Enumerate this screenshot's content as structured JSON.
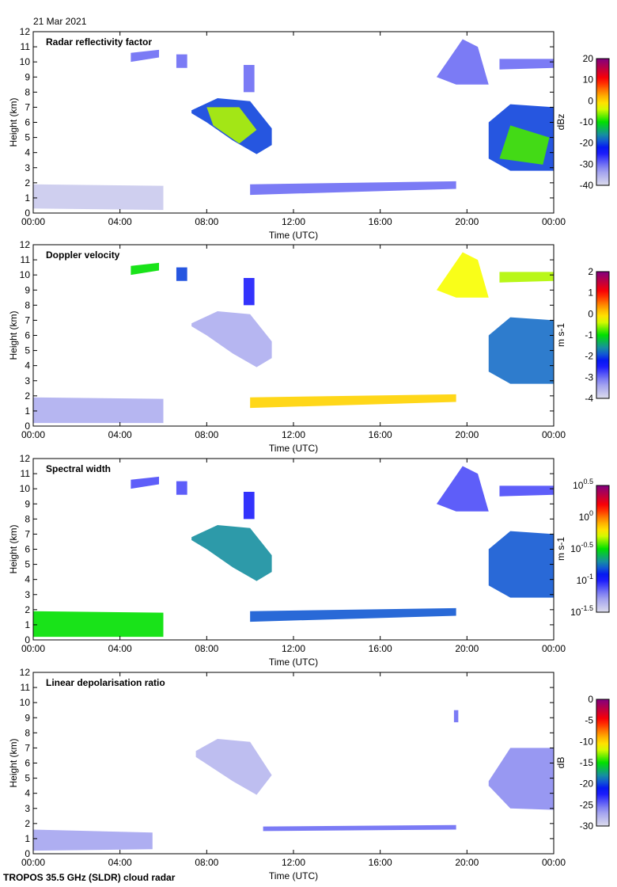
{
  "date": "21 Mar 2021",
  "footer": "TROPOS 35.5 GHz (SLDR) cloud radar",
  "chart_data": [
    {
      "type": "heatmap",
      "title": "Radar reflectivity factor",
      "xlabel": "Time (UTC)",
      "ylabel": "Height (km)",
      "xlim": [
        0,
        24
      ],
      "ylim": [
        0,
        12
      ],
      "xticks": [
        "00:00",
        "04:00",
        "08:00",
        "12:00",
        "16:00",
        "20:00",
        "00:00"
      ],
      "yticks": [
        "0",
        "1",
        "2",
        "3",
        "4",
        "5",
        "6",
        "7",
        "8",
        "9",
        "10",
        "11",
        "12"
      ],
      "colorbar": {
        "label": "dBz",
        "range": [
          -40,
          20
        ],
        "ticks": [
          "20",
          "10",
          "0",
          "-10",
          "-20",
          "-30",
          "-40"
        ]
      },
      "regions": [
        {
          "pts": [
            [
              0,
              0.3
            ],
            [
              6,
              0.2
            ],
            [
              6,
              1.8
            ],
            [
              0,
              1.9
            ]
          ],
          "value": -38
        },
        {
          "pts": [
            [
              4.5,
              10
            ],
            [
              5.8,
              10.3
            ],
            [
              5.8,
              10.8
            ],
            [
              4.5,
              10.6
            ]
          ],
          "value": -30
        },
        {
          "pts": [
            [
              6.6,
              9.6
            ],
            [
              7.1,
              9.6
            ],
            [
              7.1,
              10.5
            ],
            [
              6.6,
              10.5
            ]
          ],
          "value": -30
        },
        {
          "pts": [
            [
              9.7,
              8
            ],
            [
              10.2,
              8
            ],
            [
              10.2,
              9.8
            ],
            [
              9.7,
              9.8
            ]
          ],
          "value": -30
        },
        {
          "pts": [
            [
              7.3,
              6.8
            ],
            [
              8.5,
              7.6
            ],
            [
              10,
              7.4
            ],
            [
              11,
              5.6
            ],
            [
              11,
              4.5
            ],
            [
              10.3,
              3.9
            ],
            [
              9.2,
              4.8
            ],
            [
              8,
              6
            ],
            [
              7.3,
              6.6
            ]
          ],
          "value": -20
        },
        {
          "pts": [
            [
              8,
              7
            ],
            [
              9.5,
              7
            ],
            [
              10.3,
              5.5
            ],
            [
              9.5,
              4.6
            ],
            [
              8.3,
              5.8
            ]
          ],
          "value": -5
        },
        {
          "pts": [
            [
              10,
              1.2
            ],
            [
              19.5,
              1.6
            ],
            [
              19.5,
              2.1
            ],
            [
              10,
              1.9
            ]
          ],
          "value": -30
        },
        {
          "pts": [
            [
              18.6,
              9
            ],
            [
              19.8,
              11.5
            ],
            [
              20.5,
              11
            ],
            [
              21,
              8.5
            ],
            [
              19.5,
              8.5
            ]
          ],
          "value": -30
        },
        {
          "pts": [
            [
              21.5,
              9.5
            ],
            [
              24,
              9.6
            ],
            [
              24,
              10.2
            ],
            [
              21.5,
              10.2
            ]
          ],
          "value": -30
        },
        {
          "pts": [
            [
              21,
              3.6
            ],
            [
              22,
              2.8
            ],
            [
              24,
              2.8
            ],
            [
              24,
              7
            ],
            [
              22,
              7.2
            ],
            [
              21,
              6
            ]
          ],
          "value": -20
        },
        {
          "pts": [
            [
              21.5,
              3.6
            ],
            [
              23.5,
              3.2
            ],
            [
              23.8,
              5
            ],
            [
              22,
              5.8
            ]
          ],
          "value": -8
        }
      ]
    },
    {
      "type": "heatmap",
      "title": "Doppler velocity",
      "xlabel": "Time (UTC)",
      "ylabel": "Height (km)",
      "xlim": [
        0,
        24
      ],
      "ylim": [
        0,
        12
      ],
      "xticks": [
        "00:00",
        "04:00",
        "08:00",
        "12:00",
        "16:00",
        "20:00",
        "00:00"
      ],
      "yticks": [
        "0",
        "1",
        "2",
        "3",
        "4",
        "5",
        "6",
        "7",
        "8",
        "9",
        "10",
        "11",
        "12"
      ],
      "colorbar": {
        "label": "m s-1",
        "range": [
          -4,
          2
        ],
        "ticks": [
          "2",
          "1",
          "0",
          "-1",
          "-2",
          "-3",
          "-4"
        ]
      },
      "regions": [
        {
          "pts": [
            [
              0,
              0.2
            ],
            [
              6,
              0.2
            ],
            [
              6,
              1.8
            ],
            [
              0,
              1.9
            ]
          ],
          "value": -3.5
        },
        {
          "pts": [
            [
              4.5,
              10
            ],
            [
              5.8,
              10.3
            ],
            [
              5.8,
              10.8
            ],
            [
              4.5,
              10.6
            ]
          ],
          "value": -1
        },
        {
          "pts": [
            [
              6.6,
              9.6
            ],
            [
              7.1,
              9.6
            ],
            [
              7.1,
              10.5
            ],
            [
              6.6,
              10.5
            ]
          ],
          "value": -2
        },
        {
          "pts": [
            [
              9.7,
              8
            ],
            [
              10.2,
              8
            ],
            [
              10.2,
              9.8
            ],
            [
              9.7,
              9.8
            ]
          ],
          "value": -2.5
        },
        {
          "pts": [
            [
              7.3,
              6.8
            ],
            [
              8.5,
              7.6
            ],
            [
              10,
              7.4
            ],
            [
              11,
              5.6
            ],
            [
              11,
              4.5
            ],
            [
              10.3,
              3.9
            ],
            [
              9.2,
              4.8
            ],
            [
              8,
              6
            ],
            [
              7.3,
              6.6
            ]
          ],
          "value": -3.5
        },
        {
          "pts": [
            [
              10,
              1.2
            ],
            [
              19.5,
              1.6
            ],
            [
              19.5,
              2.1
            ],
            [
              10,
              1.9
            ]
          ],
          "value": 0
        },
        {
          "pts": [
            [
              18.6,
              9
            ],
            [
              19.8,
              11.5
            ],
            [
              20.5,
              11
            ],
            [
              21,
              8.5
            ],
            [
              19.5,
              8.5
            ]
          ],
          "value": -0.3
        },
        {
          "pts": [
            [
              21.5,
              9.5
            ],
            [
              24,
              9.6
            ],
            [
              24,
              10.2
            ],
            [
              21.5,
              10.2
            ]
          ],
          "value": -0.5
        },
        {
          "pts": [
            [
              21,
              3.6
            ],
            [
              22,
              2.8
            ],
            [
              24,
              2.8
            ],
            [
              24,
              7
            ],
            [
              22,
              7.2
            ],
            [
              21,
              6
            ]
          ],
          "value": -1.8
        }
      ]
    },
    {
      "type": "heatmap",
      "title": "Spectral width",
      "xlabel": "Time (UTC)",
      "ylabel": "Height (km)",
      "xlim": [
        0,
        24
      ],
      "ylim": [
        0,
        12
      ],
      "xticks": [
        "00:00",
        "04:00",
        "08:00",
        "12:00",
        "16:00",
        "20:00",
        "00:00"
      ],
      "yticks": [
        "0",
        "1",
        "2",
        "3",
        "4",
        "5",
        "6",
        "7",
        "8",
        "9",
        "10",
        "11",
        "12"
      ],
      "colorbar": {
        "label": "m s-1",
        "scale": "log",
        "range": [
          -1.5,
          0.5
        ],
        "ticks": [
          "0.5",
          "0",
          "-0.5",
          "-1",
          "-1.5"
        ]
      },
      "regions": [
        {
          "pts": [
            [
              0,
              0.2
            ],
            [
              6,
              0.2
            ],
            [
              6,
              1.8
            ],
            [
              0,
              1.9
            ]
          ],
          "value": -0.5
        },
        {
          "pts": [
            [
              4.5,
              10
            ],
            [
              5.8,
              10.3
            ],
            [
              5.8,
              10.8
            ],
            [
              4.5,
              10.6
            ]
          ],
          "value": -1.1
        },
        {
          "pts": [
            [
              6.6,
              9.6
            ],
            [
              7.1,
              9.6
            ],
            [
              7.1,
              10.5
            ],
            [
              6.6,
              10.5
            ]
          ],
          "value": -1.1
        },
        {
          "pts": [
            [
              9.7,
              8
            ],
            [
              10.2,
              8
            ],
            [
              10.2,
              9.8
            ],
            [
              9.7,
              9.8
            ]
          ],
          "value": -1
        },
        {
          "pts": [
            [
              7.3,
              6.8
            ],
            [
              8.5,
              7.6
            ],
            [
              10,
              7.4
            ],
            [
              11,
              5.6
            ],
            [
              11,
              4.5
            ],
            [
              10.3,
              3.9
            ],
            [
              9.2,
              4.8
            ],
            [
              8,
              6
            ],
            [
              7.3,
              6.6
            ]
          ],
          "value": -0.7
        },
        {
          "pts": [
            [
              10,
              1.2
            ],
            [
              19.5,
              1.6
            ],
            [
              19.5,
              2.1
            ],
            [
              10,
              1.9
            ]
          ],
          "value": -0.8
        },
        {
          "pts": [
            [
              18.6,
              9
            ],
            [
              19.8,
              11.5
            ],
            [
              20.5,
              11
            ],
            [
              21,
              8.5
            ],
            [
              19.5,
              8.5
            ]
          ],
          "value": -1.1
        },
        {
          "pts": [
            [
              21.5,
              9.5
            ],
            [
              24,
              9.6
            ],
            [
              24,
              10.2
            ],
            [
              21.5,
              10.2
            ]
          ],
          "value": -1.1
        },
        {
          "pts": [
            [
              21,
              3.6
            ],
            [
              22,
              2.8
            ],
            [
              24,
              2.8
            ],
            [
              24,
              7
            ],
            [
              22,
              7.2
            ],
            [
              21,
              6
            ]
          ],
          "value": -0.8
        }
      ]
    },
    {
      "type": "heatmap",
      "title": "Linear depolarisation ratio",
      "xlabel": "Time (UTC)",
      "ylabel": "Height (km)",
      "xlim": [
        0,
        24
      ],
      "ylim": [
        0,
        12
      ],
      "xticks": [
        "00:00",
        "04:00",
        "08:00",
        "12:00",
        "16:00",
        "20:00",
        "00:00"
      ],
      "yticks": [
        "0",
        "1",
        "2",
        "3",
        "4",
        "5",
        "6",
        "7",
        "8",
        "9",
        "10",
        "11",
        "12"
      ],
      "colorbar": {
        "label": "dB",
        "range": [
          -30,
          0
        ],
        "ticks": [
          "0",
          "-5",
          "-10",
          "-15",
          "-20",
          "-25",
          "-30"
        ]
      },
      "regions": [
        {
          "pts": [
            [
              0,
              0.2
            ],
            [
              5.5,
              0.3
            ],
            [
              5.5,
              1.4
            ],
            [
              0,
              1.6
            ]
          ],
          "value": -27
        },
        {
          "pts": [
            [
              7.5,
              6.8
            ],
            [
              8.5,
              7.6
            ],
            [
              10,
              7.4
            ],
            [
              11,
              5.2
            ],
            [
              10.3,
              3.9
            ],
            [
              9.2,
              4.8
            ],
            [
              7.5,
              6.4
            ]
          ],
          "value": -28
        },
        {
          "pts": [
            [
              10.6,
              1.5
            ],
            [
              19.5,
              1.6
            ],
            [
              19.5,
              1.9
            ],
            [
              10.6,
              1.8
            ]
          ],
          "value": -25
        },
        {
          "pts": [
            [
              19.4,
              8.7
            ],
            [
              19.6,
              8.7
            ],
            [
              19.6,
              9.5
            ],
            [
              19.4,
              9.5
            ]
          ],
          "value": -25
        },
        {
          "pts": [
            [
              21,
              4.5
            ],
            [
              22,
              3
            ],
            [
              24,
              2.9
            ],
            [
              24,
              7
            ],
            [
              22,
              7
            ],
            [
              21,
              4.8
            ]
          ],
          "value": -26
        }
      ]
    }
  ]
}
